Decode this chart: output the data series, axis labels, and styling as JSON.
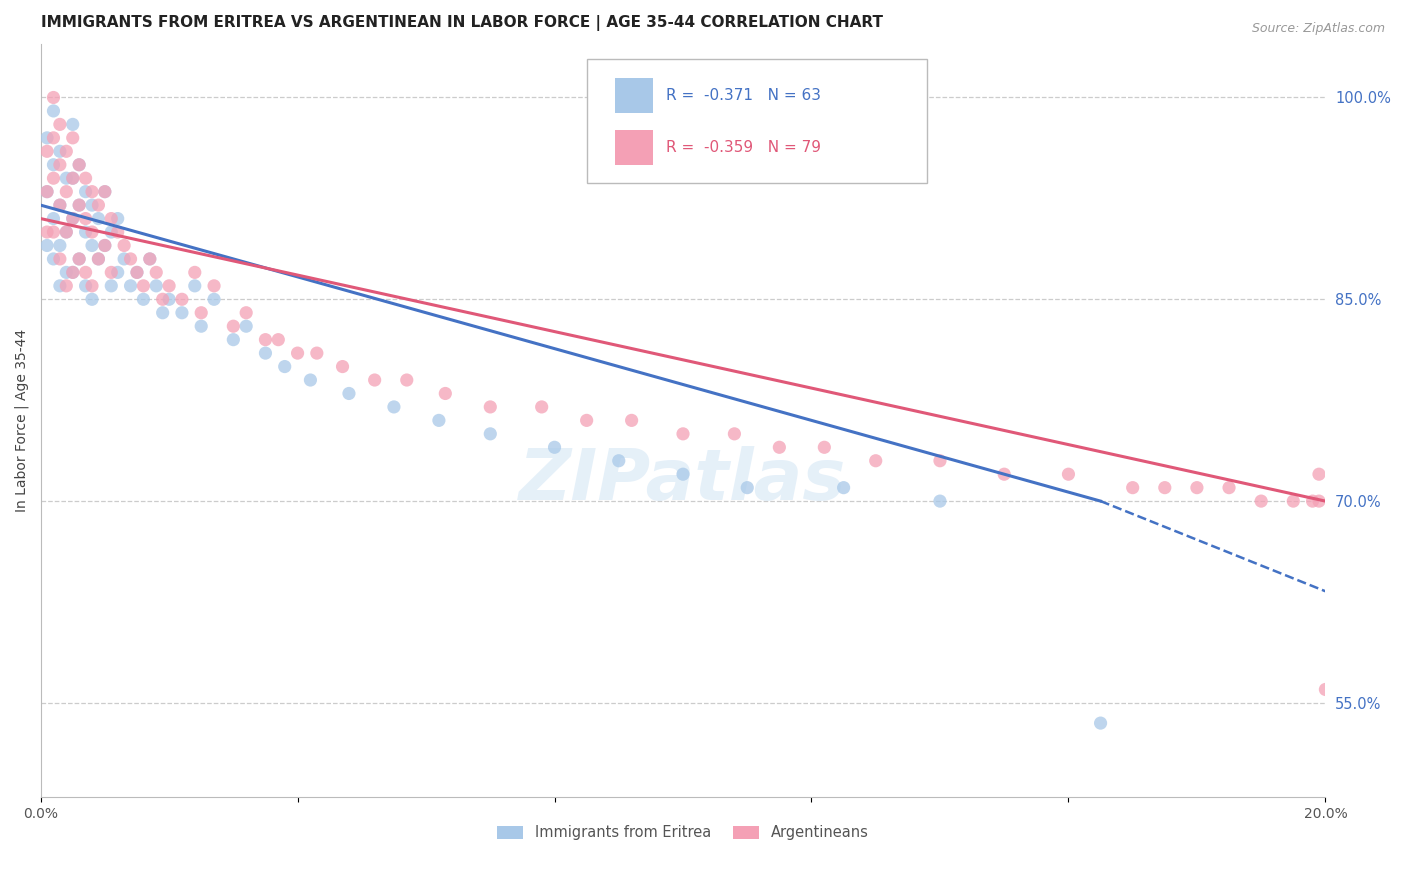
{
  "title": "IMMIGRANTS FROM ERITREA VS ARGENTINEAN IN LABOR FORCE | AGE 35-44 CORRELATION CHART",
  "source": "Source: ZipAtlas.com",
  "ylabel": "In Labor Force | Age 35-44",
  "xlim": [
    0.0,
    0.2
  ],
  "ylim": [
    0.48,
    1.04
  ],
  "xtick_pos": [
    0.0,
    0.04,
    0.08,
    0.12,
    0.16,
    0.2
  ],
  "xticklabels": [
    "0.0%",
    "",
    "",
    "",
    "",
    "20.0%"
  ],
  "yticks_right": [
    0.55,
    0.7,
    0.85,
    1.0
  ],
  "ytick_labels_right": [
    "55.0%",
    "70.0%",
    "85.0%",
    "100.0%"
  ],
  "series1_name": "Immigrants from Eritrea",
  "series1_scatter_color": "#a8c8e8",
  "series1_line_color": "#4472c4",
  "series1_R": -0.371,
  "series1_N": 63,
  "series2_name": "Argentineans",
  "series2_scatter_color": "#f4a0b5",
  "series2_line_color": "#e05878",
  "series2_R": -0.359,
  "series2_N": 79,
  "watermark": "ZIPatlas",
  "background_color": "#ffffff",
  "grid_color": "#cccccc",
  "right_tick_color": "#4472c4",
  "eritrea_x": [
    0.001,
    0.001,
    0.001,
    0.002,
    0.002,
    0.002,
    0.002,
    0.003,
    0.003,
    0.003,
    0.003,
    0.004,
    0.004,
    0.004,
    0.005,
    0.005,
    0.005,
    0.005,
    0.006,
    0.006,
    0.006,
    0.007,
    0.007,
    0.007,
    0.008,
    0.008,
    0.008,
    0.009,
    0.009,
    0.01,
    0.01,
    0.011,
    0.011,
    0.012,
    0.012,
    0.013,
    0.014,
    0.015,
    0.016,
    0.017,
    0.018,
    0.019,
    0.02,
    0.022,
    0.024,
    0.025,
    0.027,
    0.03,
    0.032,
    0.035,
    0.038,
    0.042,
    0.048,
    0.055,
    0.062,
    0.07,
    0.08,
    0.09,
    0.1,
    0.11,
    0.125,
    0.14,
    0.165
  ],
  "eritrea_y": [
    0.97,
    0.93,
    0.89,
    0.99,
    0.95,
    0.91,
    0.88,
    0.96,
    0.92,
    0.89,
    0.86,
    0.94,
    0.9,
    0.87,
    0.98,
    0.94,
    0.91,
    0.87,
    0.95,
    0.92,
    0.88,
    0.93,
    0.9,
    0.86,
    0.92,
    0.89,
    0.85,
    0.91,
    0.88,
    0.93,
    0.89,
    0.9,
    0.86,
    0.91,
    0.87,
    0.88,
    0.86,
    0.87,
    0.85,
    0.88,
    0.86,
    0.84,
    0.85,
    0.84,
    0.86,
    0.83,
    0.85,
    0.82,
    0.83,
    0.81,
    0.8,
    0.79,
    0.78,
    0.77,
    0.76,
    0.75,
    0.74,
    0.73,
    0.72,
    0.71,
    0.71,
    0.7,
    0.535
  ],
  "argentinean_x": [
    0.001,
    0.001,
    0.001,
    0.002,
    0.002,
    0.002,
    0.002,
    0.003,
    0.003,
    0.003,
    0.003,
    0.004,
    0.004,
    0.004,
    0.004,
    0.005,
    0.005,
    0.005,
    0.005,
    0.006,
    0.006,
    0.006,
    0.007,
    0.007,
    0.007,
    0.008,
    0.008,
    0.008,
    0.009,
    0.009,
    0.01,
    0.01,
    0.011,
    0.011,
    0.012,
    0.013,
    0.014,
    0.015,
    0.016,
    0.017,
    0.018,
    0.019,
    0.02,
    0.022,
    0.024,
    0.025,
    0.027,
    0.03,
    0.032,
    0.035,
    0.037,
    0.04,
    0.043,
    0.047,
    0.052,
    0.057,
    0.063,
    0.07,
    0.078,
    0.085,
    0.092,
    0.1,
    0.108,
    0.115,
    0.122,
    0.13,
    0.14,
    0.15,
    0.16,
    0.17,
    0.175,
    0.18,
    0.185,
    0.19,
    0.195,
    0.198,
    0.199,
    0.199,
    0.2
  ],
  "argentinean_y": [
    0.96,
    0.93,
    0.9,
    1.0,
    0.97,
    0.94,
    0.9,
    0.98,
    0.95,
    0.92,
    0.88,
    0.96,
    0.93,
    0.9,
    0.86,
    0.97,
    0.94,
    0.91,
    0.87,
    0.95,
    0.92,
    0.88,
    0.94,
    0.91,
    0.87,
    0.93,
    0.9,
    0.86,
    0.92,
    0.88,
    0.93,
    0.89,
    0.91,
    0.87,
    0.9,
    0.89,
    0.88,
    0.87,
    0.86,
    0.88,
    0.87,
    0.85,
    0.86,
    0.85,
    0.87,
    0.84,
    0.86,
    0.83,
    0.84,
    0.82,
    0.82,
    0.81,
    0.81,
    0.8,
    0.79,
    0.79,
    0.78,
    0.77,
    0.77,
    0.76,
    0.76,
    0.75,
    0.75,
    0.74,
    0.74,
    0.73,
    0.73,
    0.72,
    0.72,
    0.71,
    0.71,
    0.71,
    0.71,
    0.7,
    0.7,
    0.7,
    0.72,
    0.7,
    0.56
  ],
  "line1_x0": 0.0,
  "line1_y0": 0.92,
  "line1_x1": 0.165,
  "line1_y1": 0.7,
  "line1_dash_x0": 0.165,
  "line1_dash_y0": 0.7,
  "line1_dash_x1": 0.2,
  "line1_dash_y1": 0.633,
  "line2_x0": 0.0,
  "line2_y0": 0.91,
  "line2_x1": 0.2,
  "line2_y1": 0.7
}
